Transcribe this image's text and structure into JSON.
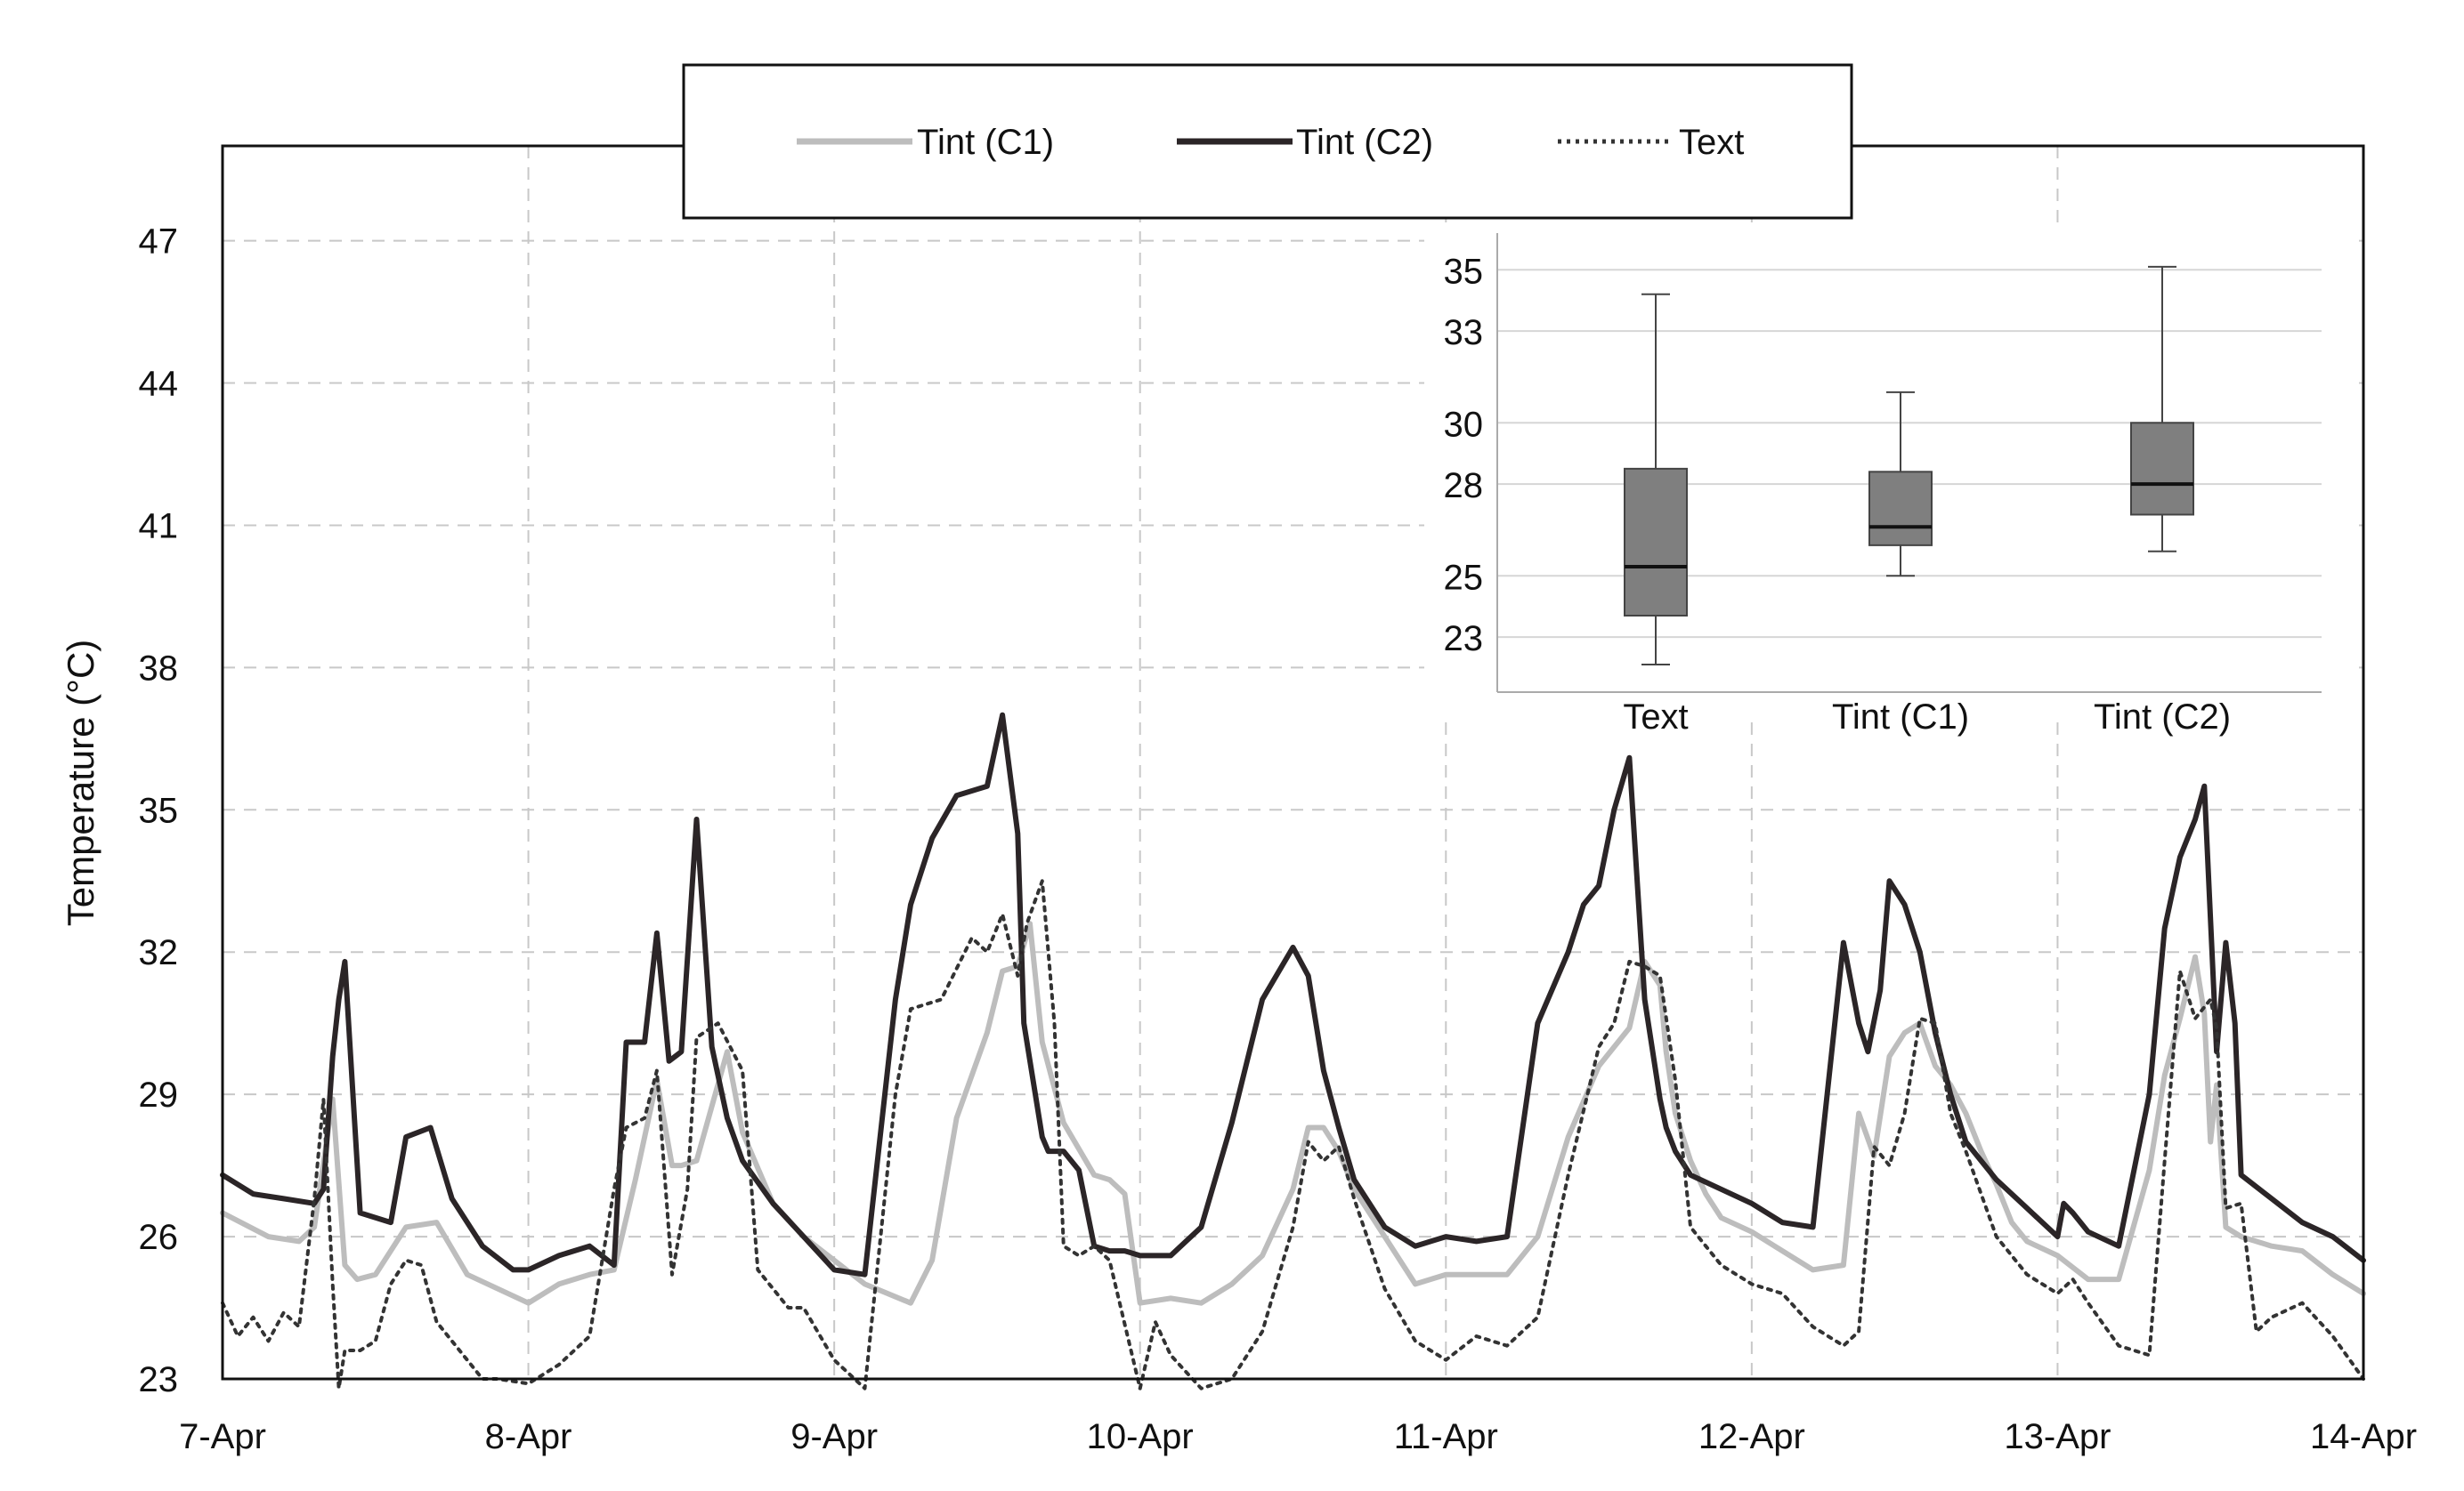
{
  "chart_data": [
    {
      "type": "line",
      "title": "",
      "xlabel": "",
      "ylabel": "Temperature (°C)",
      "x_ticks": [
        "7-Apr",
        "8-Apr",
        "9-Apr",
        "10-Apr",
        "11-Apr",
        "12-Apr",
        "13-Apr",
        "14-Apr"
      ],
      "y_ticks": [
        23,
        26,
        29,
        32,
        35,
        38,
        41,
        44,
        47
      ],
      "xlim": [
        0,
        7
      ],
      "ylim": [
        23,
        49
      ],
      "grid": true,
      "legend_position": "top-center",
      "x_unit": "days since 7-Apr",
      "series": [
        {
          "name": "Tint (C1)",
          "style": "solid-light",
          "color": "#bdbdbd",
          "x": [
            0,
            0.15,
            0.25,
            0.3,
            0.36,
            0.4,
            0.44,
            0.5,
            0.6,
            0.7,
            0.8,
            1.0,
            1.1,
            1.2,
            1.28,
            1.35,
            1.42,
            1.47,
            1.5,
            1.55,
            1.65,
            1.7,
            1.8,
            1.9,
            2.1,
            2.25,
            2.32,
            2.4,
            2.5,
            2.55,
            2.6,
            2.64,
            2.68,
            2.75,
            2.85,
            2.9,
            2.95,
            3.0,
            3.1,
            3.2,
            3.3,
            3.4,
            3.5,
            3.55,
            3.6,
            3.65,
            3.7,
            3.75,
            3.8,
            3.9,
            4.0,
            4.1,
            4.2,
            4.3,
            4.4,
            4.5,
            4.6,
            4.65,
            4.7,
            4.72,
            4.75,
            4.8,
            4.85,
            4.9,
            5.0,
            5.1,
            5.2,
            5.3,
            5.35,
            5.4,
            5.45,
            5.5,
            5.55,
            5.6,
            5.65,
            5.7,
            5.75,
            5.8,
            5.85,
            5.9,
            6.0,
            6.1,
            6.2,
            6.3,
            6.35,
            6.4,
            6.45,
            6.48,
            6.5,
            6.52,
            6.55,
            6.6,
            6.7,
            6.8,
            6.9,
            7.0
          ],
          "values": [
            26.5,
            26.0,
            25.9,
            26.2,
            28.9,
            25.4,
            25.1,
            25.2,
            26.2,
            26.3,
            25.2,
            24.6,
            25.0,
            25.2,
            25.3,
            27.2,
            29.3,
            27.5,
            27.5,
            27.6,
            29.9,
            28.2,
            26.7,
            26.0,
            25.0,
            24.6,
            25.5,
            28.5,
            30.3,
            31.6,
            31.7,
            32.6,
            30.1,
            28.4,
            27.3,
            27.2,
            26.9,
            24.6,
            24.7,
            24.6,
            25.0,
            25.6,
            27.0,
            28.3,
            28.3,
            27.8,
            27.0,
            26.5,
            26.0,
            25.0,
            25.2,
            25.2,
            25.2,
            26.0,
            28.1,
            29.6,
            30.4,
            31.8,
            31.3,
            29.9,
            28.6,
            27.6,
            26.9,
            26.4,
            26.1,
            25.7,
            25.3,
            25.4,
            28.6,
            27.7,
            29.8,
            30.3,
            30.5,
            29.6,
            29.2,
            28.6,
            27.8,
            27.1,
            26.3,
            25.9,
            25.6,
            25.1,
            25.1,
            27.4,
            29.4,
            30.6,
            31.9,
            30.7,
            28.0,
            29.2,
            26.2,
            26.0,
            25.8,
            25.7,
            25.2,
            24.8
          ]
        },
        {
          "name": "Tint (C2)",
          "style": "solid-dark",
          "color": "#2b2527",
          "x": [
            0,
            0.1,
            0.2,
            0.3,
            0.33,
            0.36,
            0.38,
            0.4,
            0.45,
            0.55,
            0.6,
            0.68,
            0.75,
            0.85,
            0.95,
            1.0,
            1.1,
            1.2,
            1.28,
            1.32,
            1.38,
            1.42,
            1.46,
            1.5,
            1.55,
            1.6,
            1.65,
            1.7,
            1.8,
            1.9,
            2.0,
            2.1,
            2.2,
            2.25,
            2.32,
            2.4,
            2.5,
            2.55,
            2.58,
            2.6,
            2.62,
            2.68,
            2.7,
            2.75,
            2.8,
            2.85,
            2.9,
            2.95,
            3.0,
            3.1,
            3.2,
            3.3,
            3.4,
            3.5,
            3.55,
            3.6,
            3.65,
            3.7,
            3.8,
            3.9,
            4.0,
            4.1,
            4.2,
            4.3,
            4.4,
            4.45,
            4.5,
            4.55,
            4.6,
            4.65,
            4.7,
            4.72,
            4.75,
            4.8,
            4.9,
            5.0,
            5.1,
            5.2,
            5.3,
            5.35,
            5.38,
            5.42,
            5.45,
            5.5,
            5.55,
            5.6,
            5.65,
            5.7,
            5.8,
            5.9,
            6.0,
            6.02,
            6.05,
            6.1,
            6.2,
            6.3,
            6.35,
            6.4,
            6.45,
            6.48,
            6.52,
            6.55,
            6.58,
            6.6,
            6.7,
            6.8,
            6.9,
            7.0
          ],
          "values": [
            27.3,
            26.9,
            26.8,
            26.7,
            27.0,
            29.8,
            31.0,
            31.8,
            26.5,
            26.3,
            28.1,
            28.3,
            26.8,
            25.8,
            25.3,
            25.3,
            25.6,
            25.8,
            25.4,
            30.1,
            30.1,
            32.4,
            29.7,
            29.9,
            34.8,
            30.0,
            28.5,
            27.6,
            26.7,
            26.0,
            25.3,
            25.2,
            31.0,
            33.0,
            34.4,
            35.3,
            35.5,
            37.0,
            35.5,
            34.5,
            30.5,
            28.1,
            27.8,
            27.8,
            27.4,
            25.8,
            25.7,
            25.7,
            25.6,
            25.6,
            26.2,
            28.4,
            31.0,
            32.1,
            31.5,
            29.5,
            28.3,
            27.2,
            26.2,
            25.8,
            26.0,
            25.9,
            26.0,
            30.5,
            32.0,
            33.0,
            33.4,
            35.0,
            36.1,
            31.0,
            28.9,
            28.3,
            27.8,
            27.3,
            27.0,
            26.7,
            26.3,
            26.2,
            32.2,
            30.5,
            29.9,
            31.2,
            33.5,
            33.0,
            32.0,
            30.3,
            29.0,
            28.0,
            27.2,
            26.6,
            26.0,
            26.7,
            26.5,
            26.1,
            25.8,
            29.0,
            32.5,
            34.0,
            34.8,
            35.5,
            29.9,
            32.2,
            30.5,
            27.3,
            26.8,
            26.3,
            26.0,
            25.5
          ]
        },
        {
          "name": "Text",
          "style": "dotted",
          "color": "#333333",
          "x": [
            0,
            0.05,
            0.1,
            0.15,
            0.2,
            0.25,
            0.3,
            0.33,
            0.36,
            0.38,
            0.4,
            0.45,
            0.5,
            0.55,
            0.6,
            0.65,
            0.7,
            0.75,
            0.85,
            0.9,
            1.0,
            1.1,
            1.2,
            1.28,
            1.32,
            1.38,
            1.42,
            1.47,
            1.52,
            1.55,
            1.62,
            1.7,
            1.75,
            1.85,
            1.9,
            2.0,
            2.1,
            2.2,
            2.25,
            2.35,
            2.45,
            2.5,
            2.55,
            2.6,
            2.63,
            2.68,
            2.72,
            2.75,
            2.8,
            2.85,
            2.9,
            3.0,
            3.05,
            3.1,
            3.2,
            3.3,
            3.4,
            3.5,
            3.55,
            3.6,
            3.65,
            3.7,
            3.8,
            3.9,
            4.0,
            4.1,
            4.2,
            4.3,
            4.4,
            4.5,
            4.55,
            4.6,
            4.65,
            4.7,
            4.75,
            4.8,
            4.9,
            5.0,
            5.1,
            5.2,
            5.3,
            5.35,
            5.4,
            5.45,
            5.5,
            5.55,
            5.6,
            5.65,
            5.7,
            5.8,
            5.9,
            6.0,
            6.05,
            6.1,
            6.2,
            6.3,
            6.35,
            6.4,
            6.45,
            6.5,
            6.52,
            6.55,
            6.6,
            6.65,
            6.7,
            6.8,
            6.9,
            7.0
          ],
          "values": [
            24.6,
            23.9,
            24.3,
            23.8,
            24.4,
            24.1,
            26.8,
            28.9,
            25.0,
            22.8,
            23.6,
            23.6,
            23.8,
            25.0,
            25.5,
            25.4,
            24.2,
            23.8,
            23.0,
            23.0,
            22.9,
            23.3,
            23.9,
            27.0,
            28.3,
            28.5,
            29.5,
            25.2,
            27.0,
            30.2,
            30.5,
            29.5,
            25.3,
            24.5,
            24.5,
            23.4,
            22.8,
            29.0,
            30.8,
            31.0,
            32.3,
            32.0,
            32.8,
            31.5,
            32.6,
            33.5,
            30.5,
            25.8,
            25.6,
            25.8,
            25.5,
            22.8,
            24.2,
            23.5,
            22.8,
            23.0,
            24.0,
            26.2,
            28.0,
            27.6,
            27.9,
            26.8,
            24.9,
            23.8,
            23.4,
            23.9,
            23.7,
            24.3,
            27.3,
            30.0,
            30.5,
            31.8,
            31.7,
            31.5,
            29.3,
            26.2,
            25.4,
            25.0,
            24.8,
            24.1,
            23.7,
            24.0,
            27.9,
            27.5,
            28.6,
            30.6,
            30.5,
            28.6,
            27.8,
            26.0,
            25.2,
            24.8,
            25.1,
            24.6,
            23.7,
            23.5,
            27.6,
            31.6,
            30.6,
            31.0,
            30.4,
            26.6,
            26.7,
            24.0,
            24.3,
            24.6,
            23.9,
            23.0
          ]
        }
      ]
    },
    {
      "type": "box",
      "title": "",
      "xlabel": "",
      "ylabel": "",
      "categories": [
        "Text",
        "Tint (C1)",
        "Tint (C2)"
      ],
      "y_ticks": [
        23,
        25,
        28,
        30,
        33,
        35
      ],
      "ylim": [
        21.2,
        36.2
      ],
      "grid": true,
      "box_color": "#7f7f7f",
      "boxes": [
        {
          "name": "Text",
          "min": 22.1,
          "q1": 23.7,
          "median": 25.3,
          "q3": 28.5,
          "max": 34.2
        },
        {
          "name": "Tint (C1)",
          "min": 25.0,
          "q1": 26.0,
          "median": 26.6,
          "q3": 28.4,
          "max": 31.0
        },
        {
          "name": "Tint (C2)",
          "min": 25.8,
          "q1": 27.0,
          "median": 28.0,
          "q3": 30.0,
          "max": 35.1
        }
      ]
    }
  ]
}
